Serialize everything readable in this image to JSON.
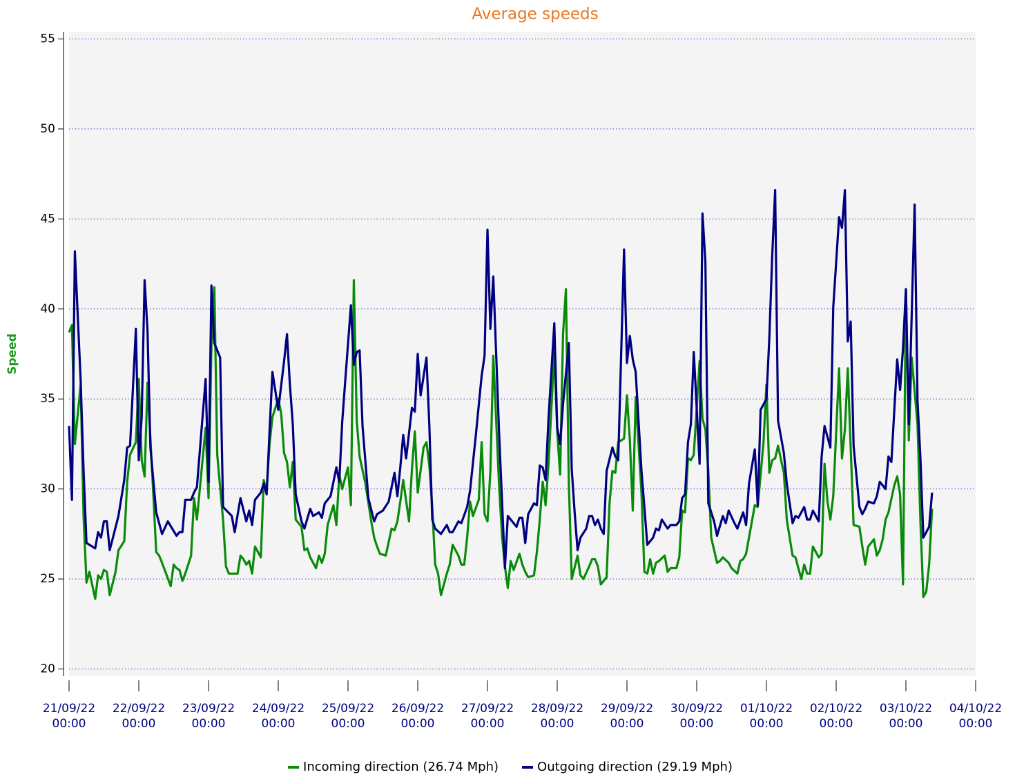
{
  "chart_data": {
    "type": "line",
    "title": "Average speeds",
    "y_label": "Speed",
    "xlim": [
      0,
      312
    ],
    "xticks": [
      {
        "value": 0,
        "label": "21/09/22 00:00"
      },
      {
        "value": 24,
        "label": "22/09/22 00:00"
      },
      {
        "value": 48,
        "label": "23/09/22 00:00"
      },
      {
        "value": 72,
        "label": "24/09/22 00:00"
      },
      {
        "value": 96,
        "label": "25/09/22 00:00"
      },
      {
        "value": 120,
        "label": "26/09/22 00:00"
      },
      {
        "value": 144,
        "label": "27/09/22 00:00"
      },
      {
        "value": 168,
        "label": "28/09/22 00:00"
      },
      {
        "value": 192,
        "label": "29/09/22 00:00"
      },
      {
        "value": 216,
        "label": "30/09/22 00:00"
      },
      {
        "value": 240,
        "label": "01/10/22 00:00"
      },
      {
        "value": 264,
        "label": "02/10/22 00:00"
      },
      {
        "value": 288,
        "label": "03/10/22 00:00"
      },
      {
        "value": 312,
        "label": "04/10/22 00:00"
      }
    ],
    "ylim": [
      19.6,
      55.4
    ],
    "yticks": [
      20,
      25,
      30,
      35,
      40,
      45,
      50,
      55
    ],
    "grid": true,
    "legend": "bottom",
    "series": [
      {
        "name": "Incoming direction (26.74 Mph)",
        "color": "#0a8a0a",
        "x": [
          0,
          1,
          2,
          4,
          5,
          6,
          7,
          9,
          10,
          11,
          12,
          13,
          14,
          16,
          17,
          19,
          20,
          21,
          23,
          24,
          25,
          26,
          27,
          29,
          30,
          31,
          32,
          35,
          36,
          37,
          38,
          39,
          40,
          42,
          43,
          44,
          46,
          47,
          48,
          49,
          50,
          51,
          53,
          54,
          55,
          58,
          59,
          60,
          61,
          62,
          63,
          64,
          66,
          67,
          68,
          69,
          70,
          72,
          73,
          74,
          75,
          76,
          77,
          78,
          80,
          81,
          82,
          83,
          85,
          86,
          87,
          88,
          89,
          91,
          92,
          93,
          94,
          96,
          97,
          98,
          99,
          100,
          102,
          104,
          105,
          106,
          107,
          109,
          111,
          112,
          113,
          114,
          115,
          117,
          118,
          119,
          120,
          122,
          123,
          124,
          125,
          126,
          127,
          128,
          130,
          131,
          132,
          134,
          135,
          136,
          137,
          138,
          139,
          141,
          142,
          143,
          144,
          145,
          146,
          148,
          149,
          150,
          151,
          152,
          153,
          155,
          156,
          157,
          158,
          160,
          161,
          162,
          163,
          164,
          165,
          167,
          168,
          169,
          170,
          171,
          172,
          173,
          175,
          176,
          177,
          179,
          180,
          181,
          182,
          183,
          185,
          186,
          187,
          188,
          189,
          191,
          192,
          193,
          194,
          195,
          197,
          198,
          199,
          200,
          201,
          202,
          203,
          205,
          206,
          207,
          209,
          210,
          211,
          212,
          213,
          214,
          215,
          217,
          218,
          219,
          220,
          221,
          223,
          224,
          225,
          227,
          228,
          230,
          231,
          232,
          233,
          235,
          236,
          237,
          239,
          240,
          241,
          242,
          243,
          244,
          246,
          247,
          248,
          249,
          250,
          252,
          253,
          254,
          255,
          256,
          258,
          259,
          260,
          261,
          262,
          263,
          265,
          266,
          267,
          268,
          269,
          270,
          272,
          273,
          274,
          275,
          277,
          278,
          279,
          280,
          281,
          282,
          284,
          285,
          286,
          287,
          288,
          289,
          290,
          292,
          293,
          294,
          295,
          296,
          297
        ],
        "values": [
          38.7,
          39.1,
          32.5,
          35.8,
          28.5,
          24.8,
          25.4,
          23.9,
          25.2,
          25,
          25.5,
          25.4,
          24.1,
          25.4,
          26.6,
          27.1,
          30.4,
          31.9,
          32.6,
          36.1,
          31.6,
          30.7,
          35.9,
          29.7,
          26.5,
          26.3,
          25.9,
          24.6,
          25.8,
          25.6,
          25.5,
          24.9,
          25.3,
          26.3,
          29.5,
          28.3,
          31.7,
          33.4,
          29.5,
          38,
          41.2,
          31.9,
          28.3,
          25.7,
          25.3,
          25.3,
          26.3,
          26.1,
          25.8,
          26,
          25.3,
          26.8,
          26.2,
          30.5,
          29.9,
          32.5,
          34,
          35,
          34.2,
          32,
          31.5,
          30.1,
          31.5,
          28.3,
          27.9,
          26.6,
          26.7,
          26.2,
          25.6,
          26.3,
          25.9,
          26.4,
          28,
          29.1,
          28,
          30.8,
          30,
          31.2,
          29.1,
          41.6,
          33.8,
          31.8,
          30.3,
          28.2,
          27.3,
          26.8,
          26.4,
          26.3,
          27.8,
          27.7,
          28.2,
          29.3,
          30.5,
          28.2,
          31.1,
          33.2,
          29.8,
          32.3,
          32.6,
          31.3,
          29,
          25.8,
          25.3,
          24.1,
          25.3,
          25.8,
          26.9,
          26.3,
          25.8,
          25.8,
          27.3,
          29.3,
          28.5,
          29.4,
          32.6,
          28.6,
          28.2,
          31,
          37.4,
          30.2,
          27.4,
          25.7,
          24.5,
          26,
          25.5,
          26.4,
          25.8,
          25.4,
          25.1,
          25.2,
          26.5,
          28.3,
          30.4,
          29.1,
          31.4,
          37.6,
          33.2,
          30.8,
          38.6,
          41.1,
          30.3,
          25,
          26.3,
          25.2,
          25,
          25.7,
          26.1,
          26.1,
          25.7,
          24.7,
          25.1,
          29.2,
          31,
          30.9,
          32.6,
          32.8,
          35.2,
          32.7,
          28.8,
          35.1,
          29.8,
          25.4,
          25.3,
          26.1,
          25.3,
          25.9,
          26,
          26.3,
          25.4,
          25.6,
          25.6,
          26.2,
          28.8,
          28.7,
          31.7,
          31.6,
          31.9,
          37.1,
          33.9,
          33.3,
          31,
          27.3,
          25.9,
          26,
          26.2,
          25.9,
          25.6,
          25.3,
          26,
          26.1,
          26.4,
          28.2,
          29.1,
          29,
          32.6,
          35.8,
          30.9,
          31.6,
          31.7,
          32.4,
          30.9,
          28.3,
          27.3,
          26.3,
          26.2,
          25,
          25.8,
          25.3,
          25.3,
          26.8,
          26.2,
          26.4,
          31.4,
          29.3,
          28.3,
          29.6,
          36.7,
          31.7,
          33.3,
          36.7,
          32.3,
          28,
          27.9,
          26.8,
          25.8,
          26.8,
          27.2,
          26.3,
          26.6,
          27.2,
          28.3,
          28.7,
          30.2,
          30.7,
          29.7,
          24.7,
          41.1,
          32.7,
          37.3,
          33.6,
          28.2,
          24,
          24.3,
          25.8,
          28.9
        ]
      },
      {
        "name": "Outgoing direction (29.19 Mph)",
        "color": "#000080",
        "x": [
          0,
          1,
          2,
          4,
          5,
          6,
          9,
          10,
          11,
          12,
          13,
          14,
          17,
          19,
          20,
          21,
          23,
          24,
          25,
          26,
          27,
          28,
          30,
          32,
          34,
          37,
          38,
          39,
          40,
          42,
          43,
          44,
          47,
          48,
          49,
          50,
          52,
          53,
          56,
          57,
          59,
          61,
          62,
          63,
          64,
          66,
          67,
          68,
          69,
          70,
          72,
          74,
          75,
          76,
          77,
          78,
          80,
          81,
          83,
          84,
          86,
          87,
          88,
          90,
          92,
          93,
          94,
          95,
          97,
          98,
          99,
          100,
          101,
          103,
          105,
          106,
          108,
          110,
          111,
          112,
          113,
          114,
          115,
          116,
          118,
          119,
          120,
          121,
          123,
          124,
          125,
          126,
          128,
          130,
          131,
          132,
          134,
          135,
          137,
          138,
          140,
          142,
          143,
          144,
          145,
          146,
          148,
          150,
          151,
          153,
          154,
          155,
          156,
          157,
          158,
          160,
          161,
          162,
          163,
          164,
          165,
          167,
          168,
          169,
          170,
          172,
          173,
          174,
          175,
          176,
          178,
          179,
          180,
          181,
          182,
          183,
          184,
          185,
          187,
          188,
          189,
          191,
          192,
          193,
          194,
          195,
          197,
          198,
          199,
          201,
          202,
          203,
          204,
          206,
          207,
          209,
          210,
          211,
          212,
          213,
          214,
          215,
          217,
          218,
          219,
          220,
          222,
          223,
          225,
          226,
          227,
          229,
          230,
          232,
          233,
          234,
          236,
          237,
          238,
          240,
          241,
          242,
          243,
          244,
          246,
          247,
          249,
          250,
          251,
          253,
          254,
          255,
          256,
          258,
          259,
          260,
          262,
          263,
          265,
          266,
          267,
          268,
          269,
          270,
          272,
          273,
          274,
          275,
          277,
          278,
          279,
          281,
          282,
          283,
          285,
          286,
          287,
          288,
          289,
          291,
          292,
          293,
          294,
          296,
          297
        ],
        "values": [
          33.5,
          29.4,
          43.2,
          36,
          31,
          27,
          26.7,
          27.6,
          27.3,
          28.2,
          28.2,
          26.6,
          28.5,
          30.5,
          32.3,
          32.4,
          38.9,
          31.6,
          34,
          41.6,
          38.8,
          32.3,
          28.7,
          27.5,
          28.2,
          27.4,
          27.6,
          27.6,
          29.4,
          29.4,
          29.8,
          30.1,
          36.1,
          30.4,
          41.3,
          38.1,
          37.3,
          29,
          28.5,
          27.6,
          29.5,
          28.2,
          28.8,
          28,
          29.4,
          29.8,
          30.3,
          29.7,
          33.2,
          36.5,
          34.4,
          37.1,
          38.6,
          35.8,
          33.6,
          29.7,
          28.2,
          27.8,
          28.9,
          28.5,
          28.7,
          28.4,
          29.2,
          29.6,
          31.2,
          30.4,
          33.7,
          35.9,
          40.2,
          36.9,
          37.6,
          37.7,
          33.5,
          29.5,
          28.2,
          28.6,
          28.8,
          29.3,
          30.1,
          30.9,
          29.6,
          31.2,
          33,
          31.7,
          34.5,
          34.3,
          37.5,
          35.2,
          37.3,
          33.5,
          28.3,
          27.8,
          27.5,
          28,
          27.6,
          27.6,
          28.2,
          28.1,
          29,
          29.9,
          33,
          36.3,
          37.4,
          44.4,
          38.9,
          41.8,
          33.1,
          25.6,
          28.5,
          28.1,
          27.9,
          28.4,
          28.4,
          27,
          28.6,
          29.2,
          29.1,
          31.3,
          31.2,
          30.5,
          33.9,
          39.2,
          33.4,
          32.5,
          34.7,
          38.1,
          31.1,
          28.7,
          26.6,
          27.3,
          27.8,
          28.5,
          28.5,
          28,
          28.3,
          27.8,
          27.5,
          31,
          32.3,
          31.8,
          31.6,
          43.3,
          37,
          38.5,
          37.2,
          36.5,
          31,
          29,
          26.9,
          27.3,
          27.8,
          27.7,
          28.3,
          27.8,
          28,
          28,
          28.2,
          29.5,
          29.7,
          32.6,
          33.6,
          37.6,
          31.4,
          45.3,
          42.6,
          29.2,
          28.2,
          27.4,
          28.5,
          28.1,
          28.8,
          28.1,
          27.8,
          28.7,
          28,
          30.3,
          32.2,
          29.1,
          34.4,
          35,
          38.4,
          43,
          46.6,
          33.8,
          32,
          30.3,
          28.1,
          28.5,
          28.4,
          29,
          28.3,
          28.3,
          28.8,
          28.2,
          31.8,
          33.5,
          32.3,
          40.1,
          45.1,
          44.5,
          46.6,
          38.2,
          39.3,
          32.4,
          29,
          28.6,
          28.9,
          29.3,
          29.2,
          29.6,
          30.4,
          30,
          31.8,
          31.5,
          37.2,
          35.5,
          37.8,
          41.1,
          33.6,
          45.8,
          34.9,
          31.7,
          27.3,
          27.9,
          29.8
        ]
      }
    ]
  }
}
